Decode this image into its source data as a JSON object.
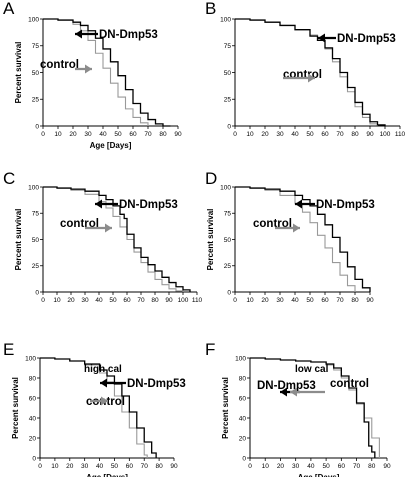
{
  "figure": {
    "arrow_colors": {
      "DN-Dmp53": "#000000",
      "control": "#8c8c8c"
    }
  },
  "chart_data": [
    {
      "type": "line",
      "panel_label": "A",
      "xlabel": "Age [Days]",
      "ylabel": "Percent survival",
      "xlim": [
        0,
        90
      ],
      "ylim": [
        0,
        100
      ],
      "xticks": [
        0,
        10,
        20,
        30,
        40,
        50,
        60,
        70,
        80,
        90
      ],
      "yticks": [
        0,
        25,
        50,
        75,
        100
      ],
      "condition": "",
      "series": [
        {
          "name": "DN-Dmp53",
          "color": "#000000",
          "x": [
            0,
            10,
            20,
            25,
            30,
            35,
            40,
            45,
            50,
            55,
            60,
            65,
            70,
            75,
            80,
            85
          ],
          "y": [
            100,
            99,
            97,
            94,
            89,
            82,
            72,
            60,
            47,
            34,
            21,
            12,
            6,
            2,
            0,
            0
          ]
        },
        {
          "name": "control",
          "color": "#999999",
          "x": [
            0,
            10,
            20,
            25,
            30,
            35,
            40,
            45,
            50,
            55,
            60,
            65,
            70
          ],
          "y": [
            100,
            99,
            95,
            89,
            80,
            68,
            54,
            40,
            27,
            16,
            8,
            3,
            0
          ]
        }
      ]
    },
    {
      "type": "line",
      "panel_label": "B",
      "xlabel": "",
      "ylabel": "",
      "xlim": [
        0,
        110
      ],
      "ylim": [
        0,
        100
      ],
      "xticks": [
        0,
        10,
        20,
        30,
        40,
        50,
        60,
        70,
        80,
        90,
        100,
        110
      ],
      "yticks": [
        0,
        25,
        50,
        75,
        100
      ],
      "condition": "",
      "series": [
        {
          "name": "DN-Dmp53",
          "color": "#000000",
          "x": [
            0,
            10,
            20,
            30,
            40,
            50,
            55,
            60,
            65,
            70,
            75,
            80,
            85,
            90,
            95,
            100
          ],
          "y": [
            100,
            99,
            97,
            94,
            90,
            84,
            80,
            73,
            63,
            50,
            36,
            22,
            11,
            4,
            1,
            0
          ]
        },
        {
          "name": "control",
          "color": "#999999",
          "x": [
            0,
            10,
            20,
            30,
            40,
            50,
            55,
            60,
            65,
            70,
            75,
            80,
            85,
            90,
            95
          ],
          "y": [
            100,
            99,
            97,
            94,
            90,
            85,
            80,
            72,
            60,
            46,
            32,
            18,
            8,
            2,
            0
          ]
        }
      ]
    },
    {
      "type": "line",
      "panel_label": "C",
      "xlabel": "",
      "ylabel": "Percent survival",
      "xlim": [
        0,
        110
      ],
      "ylim": [
        0,
        100
      ],
      "xticks": [
        0,
        10,
        20,
        30,
        40,
        50,
        60,
        70,
        80,
        90,
        100,
        110
      ],
      "yticks": [
        0,
        25,
        50,
        75,
        100
      ],
      "condition": "",
      "series": [
        {
          "name": "DN-Dmp53",
          "color": "#000000",
          "x": [
            0,
            10,
            20,
            30,
            40,
            45,
            50,
            55,
            58,
            60,
            65,
            70,
            75,
            80,
            85,
            90,
            95,
            100,
            105
          ],
          "y": [
            100,
            99,
            98,
            96,
            92,
            88,
            82,
            74,
            70,
            55,
            42,
            33,
            26,
            20,
            14,
            9,
            5,
            2,
            0
          ]
        },
        {
          "name": "control",
          "color": "#999999",
          "x": [
            0,
            10,
            20,
            30,
            40,
            45,
            50,
            55,
            60,
            65,
            70,
            75,
            80,
            85,
            90,
            95,
            100
          ],
          "y": [
            100,
            99,
            97,
            93,
            86,
            80,
            72,
            62,
            50,
            38,
            28,
            19,
            12,
            7,
            3,
            1,
            0
          ]
        }
      ]
    },
    {
      "type": "line",
      "panel_label": "D",
      "xlabel": "",
      "ylabel": "Percent survival",
      "xlim": [
        0,
        90
      ],
      "ylim": [
        0,
        100
      ],
      "xticks": [
        0,
        10,
        20,
        30,
        40,
        50,
        60,
        70,
        80,
        90
      ],
      "yticks": [
        0,
        25,
        50,
        75,
        100
      ],
      "condition": "",
      "series": [
        {
          "name": "DN-Dmp53",
          "color": "#000000",
          "x": [
            0,
            10,
            20,
            30,
            40,
            45,
            50,
            55,
            60,
            65,
            70,
            75,
            80,
            85,
            90
          ],
          "y": [
            100,
            99,
            98,
            96,
            92,
            88,
            82,
            74,
            64,
            52,
            38,
            24,
            12,
            4,
            0
          ]
        },
        {
          "name": "control",
          "color": "#999999",
          "x": [
            0,
            10,
            20,
            30,
            40,
            45,
            50,
            55,
            60,
            65,
            70,
            75,
            80
          ],
          "y": [
            100,
            99,
            97,
            92,
            84,
            76,
            66,
            54,
            42,
            28,
            16,
            6,
            0
          ]
        }
      ]
    },
    {
      "type": "line",
      "panel_label": "E",
      "xlabel": "Age [Days]",
      "ylabel": "Percent survival",
      "xlim": [
        0,
        90
      ],
      "ylim": [
        0,
        100
      ],
      "xticks": [
        0,
        10,
        20,
        30,
        40,
        50,
        60,
        70,
        80,
        90
      ],
      "yticks": [
        0,
        20,
        40,
        60,
        80,
        100
      ],
      "condition": "high cal",
      "series": [
        {
          "name": "DN-Dmp53",
          "color": "#000000",
          "x": [
            0,
            10,
            20,
            30,
            40,
            45,
            50,
            55,
            60,
            65,
            70,
            75,
            78
          ],
          "y": [
            100,
            99,
            97,
            94,
            88,
            82,
            74,
            62,
            46,
            30,
            16,
            5,
            0
          ]
        },
        {
          "name": "control",
          "color": "#999999",
          "x": [
            0,
            10,
            20,
            30,
            40,
            45,
            50,
            55,
            60,
            65,
            70,
            72
          ],
          "y": [
            100,
            99,
            97,
            93,
            85,
            76,
            62,
            46,
            30,
            14,
            3,
            0
          ]
        }
      ]
    },
    {
      "type": "line",
      "panel_label": "F",
      "xlabel": "Age [Days]",
      "ylabel": "Percent survival",
      "xlim": [
        0,
        90
      ],
      "ylim": [
        0,
        100
      ],
      "xticks": [
        0,
        10,
        20,
        30,
        40,
        50,
        60,
        70,
        80,
        90
      ],
      "yticks": [
        0,
        20,
        40,
        60,
        80,
        100
      ],
      "condition": "low cal",
      "series": [
        {
          "name": "DN-Dmp53",
          "color": "#000000",
          "x": [
            0,
            10,
            20,
            30,
            40,
            50,
            55,
            60,
            65,
            70,
            75,
            78,
            80,
            82
          ],
          "y": [
            100,
            99,
            98,
            97,
            96,
            94,
            90,
            82,
            70,
            55,
            36,
            12,
            6,
            0
          ]
        },
        {
          "name": "control",
          "color": "#999999",
          "x": [
            0,
            10,
            20,
            30,
            40,
            50,
            55,
            60,
            65,
            70,
            75,
            80,
            85
          ],
          "y": [
            100,
            99,
            98,
            97,
            96,
            93,
            88,
            80,
            68,
            54,
            40,
            20,
            0
          ]
        }
      ]
    }
  ]
}
